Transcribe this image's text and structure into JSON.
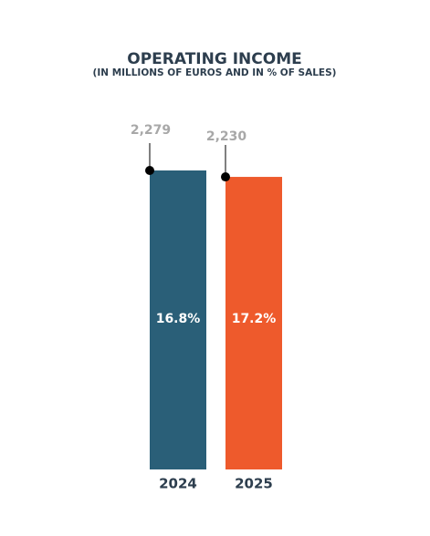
{
  "chart_data": {
    "type": "bar",
    "title": "OPERATING INCOME",
    "subtitle": "(IN MILLIONS OF EUROS AND IN % OF SALES)",
    "categories": [
      "2024",
      "2025"
    ],
    "values": [
      2279,
      2230
    ],
    "value_labels": [
      "2,279",
      "2,230"
    ],
    "colors": [
      "#2a5f78",
      "#ee5a2c"
    ],
    "share_of_sales": [
      16.8,
      17.2
    ],
    "share_of_sales_labels": [
      "16.8%",
      "17.2%"
    ]
  }
}
